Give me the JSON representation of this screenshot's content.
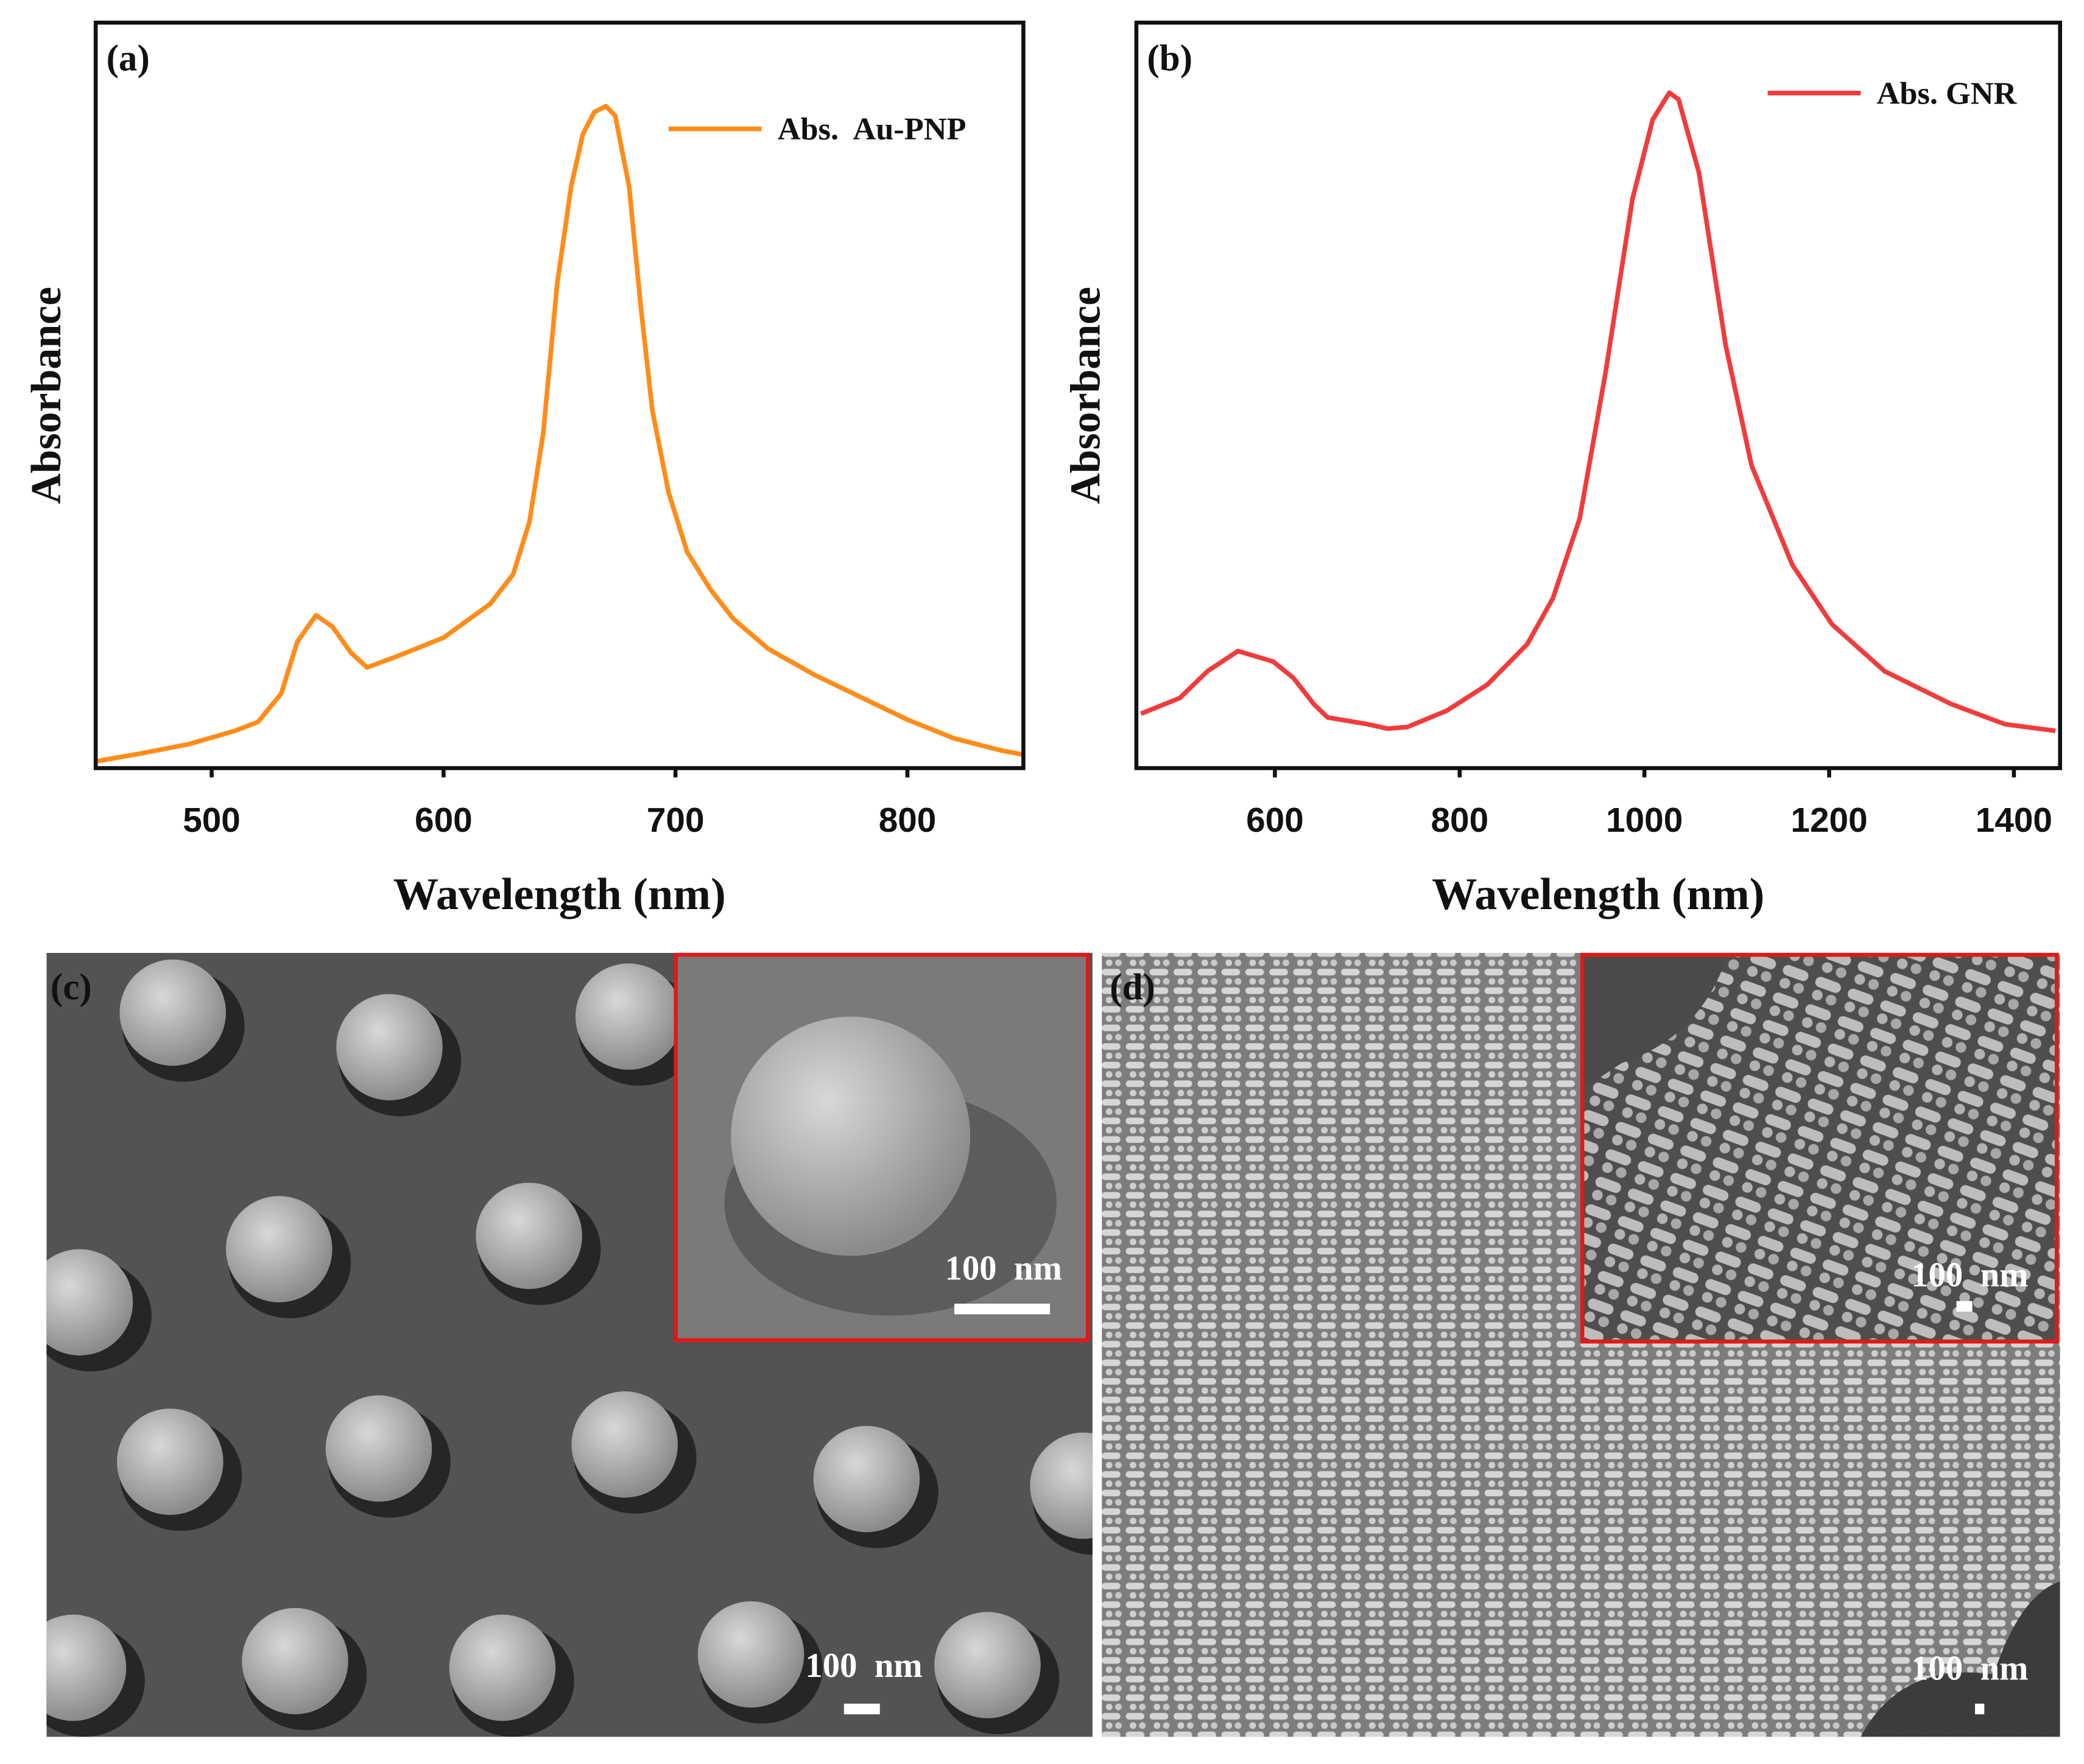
{
  "chart_data": [
    {
      "type": "line",
      "panel_label": "(a)",
      "x_label": "Wavelength (nm)",
      "y_label": "Absorbance",
      "x": [
        450,
        470,
        490,
        510,
        520,
        530,
        537,
        545,
        552,
        560,
        567,
        580,
        600,
        620,
        630,
        637,
        643,
        649,
        655,
        660,
        665,
        670,
        674,
        680,
        685,
        690,
        697,
        705,
        715,
        725,
        740,
        760,
        780,
        800,
        820,
        840,
        850
      ],
      "series": [
        {
          "name": "Abs.  Au-PNP",
          "color": "#ff8c1a",
          "values": [
            0.009,
            0.02,
            0.032,
            0.05,
            0.062,
            0.1,
            0.17,
            0.205,
            0.19,
            0.155,
            0.135,
            0.15,
            0.175,
            0.22,
            0.26,
            0.33,
            0.45,
            0.65,
            0.78,
            0.85,
            0.88,
            0.888,
            0.875,
            0.78,
            0.62,
            0.48,
            0.37,
            0.29,
            0.24,
            0.2,
            0.16,
            0.125,
            0.095,
            0.065,
            0.04,
            0.024,
            0.018
          ]
        }
      ],
      "xlim": [
        450,
        850
      ],
      "ylim": [
        0,
        1
      ],
      "xticks": [
        500,
        600,
        700,
        800
      ],
      "legend": "upper right"
    },
    {
      "type": "line",
      "panel_label": "(b)",
      "x_label": "Wavelength (nm)",
      "y_label": "Absorbance",
      "x": [
        455,
        497,
        527,
        560,
        598,
        620,
        642,
        657,
        700,
        722,
        743,
        786,
        830,
        873,
        901,
        930,
        958,
        987,
        1009,
        1027,
        1037,
        1059,
        1088,
        1116,
        1160,
        1203,
        1260,
        1332,
        1390,
        1445
      ],
      "series": [
        {
          "name": "Abs. GNR",
          "color": "#f03c3c",
          "values": [
            0.073,
            0.094,
            0.13,
            0.157,
            0.143,
            0.121,
            0.086,
            0.068,
            0.059,
            0.053,
            0.055,
            0.077,
            0.112,
            0.166,
            0.228,
            0.335,
            0.531,
            0.763,
            0.87,
            0.906,
            0.897,
            0.799,
            0.567,
            0.406,
            0.273,
            0.193,
            0.13,
            0.086,
            0.059,
            0.05
          ]
        }
      ],
      "xlim": [
        450,
        1450
      ],
      "ylim": [
        0,
        1
      ],
      "xticks": [
        600,
        800,
        1000,
        1200,
        1400
      ],
      "legend": "upper right"
    }
  ],
  "images": [
    {
      "label": "(c)",
      "scale_bars": [
        "100  nm",
        "100  nm"
      ]
    },
    {
      "label": "(d)",
      "scale_bars": [
        "100  nm",
        "100  nm"
      ]
    }
  ]
}
